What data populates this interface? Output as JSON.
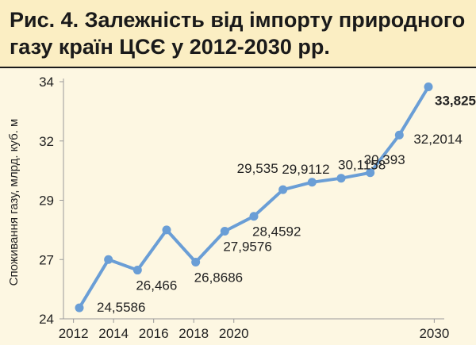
{
  "chart_data": {
    "type": "line",
    "title_lines": [
      "Рис. 4. Залежність від імпорту природного",
      "газу країн ЦСЄ у 2012-2030 рр."
    ],
    "ylabel": "Споживання газу, млрд. куб. м",
    "xlabel": "",
    "xlim": [
      2011.5,
      2030.5
    ],
    "ylim": [
      24,
      34
    ],
    "y_ticks": [
      24,
      27,
      29,
      32,
      34
    ],
    "x_ticks": [
      2012,
      2014,
      2016,
      2018,
      2020,
      2030
    ],
    "line_color": "#6a9ed6",
    "grid": false,
    "points": [
      {
        "x": 2012,
        "y": 24.5586,
        "label": "24,5586"
      },
      {
        "x": 2013,
        "y": 27.0,
        "label": ""
      },
      {
        "x": 2014,
        "y": 26.466,
        "label": "26,466"
      },
      {
        "x": 2015,
        "y": 28.0,
        "label": ""
      },
      {
        "x": 2016,
        "y": 26.8686,
        "label": "26,8686"
      },
      {
        "x": 2017,
        "y": 27.9576,
        "label": "27,9576"
      },
      {
        "x": 2018,
        "y": 28.4592,
        "label": "28,4592"
      },
      {
        "x": 2019,
        "y": 29.535,
        "label": "29,535"
      },
      {
        "x": 2020,
        "y": 29.9112,
        "label": "29,9112"
      },
      {
        "x": 2021,
        "y": 30.1158,
        "label": "30,1158"
      },
      {
        "x": 2022,
        "y": 30.393,
        "label": "30,393"
      },
      {
        "x": 2023,
        "y": 32.2014,
        "label": "32,2014"
      },
      {
        "x": 2030,
        "y": 33.825,
        "label": "33,825",
        "bold": true
      }
    ]
  }
}
